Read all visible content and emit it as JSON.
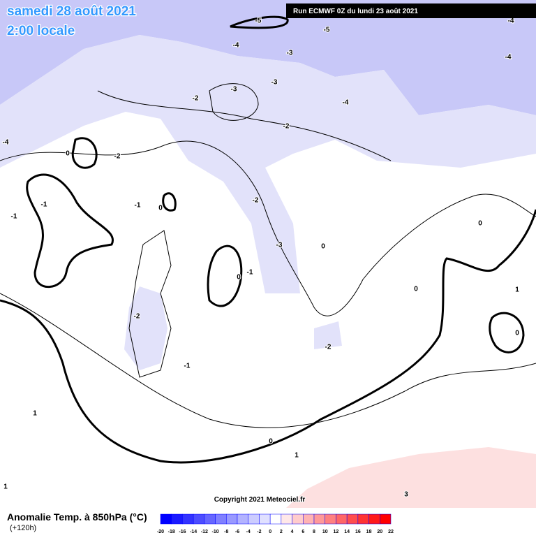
{
  "header": {
    "date": "samedi 28 août 2021",
    "time": "2:00 locale",
    "run": "Run ECMWF 0Z du lundi 23 août 2021"
  },
  "map": {
    "contour_labels": [
      -5,
      -5,
      -4,
      -4,
      -3,
      -4,
      -3,
      -3,
      -2,
      -4,
      -2,
      -4,
      0,
      -2,
      -1,
      -1,
      0,
      -2,
      -1,
      0,
      -3,
      0,
      0,
      -1,
      0,
      1,
      -2,
      0,
      -2,
      -1,
      1,
      0,
      1,
      1,
      3
    ],
    "copyright": "Copyright 2021 Meteociel.fr"
  },
  "legend": {
    "title": "Anomalie Temp. à 850hPa (°C)",
    "lead": "(+120h)",
    "ticks": [
      -20,
      -18,
      -16,
      -14,
      -12,
      -10,
      -8,
      -6,
      -4,
      -2,
      0,
      2,
      4,
      6,
      8,
      10,
      12,
      14,
      16,
      18,
      20,
      22
    ],
    "colors": [
      "#0000ff",
      "#1a1aff",
      "#3333ff",
      "#4d4dff",
      "#6666ff",
      "#8080ff",
      "#9999ff",
      "#b3b3ff",
      "#ccccff",
      "#e0e0ff",
      "#ffffff",
      "#ffe8e8",
      "#ffcccc",
      "#ffb3b3",
      "#ff9999",
      "#ff8080",
      "#ff6666",
      "#ff4d4d",
      "#ff3333",
      "#ff1a1a",
      "#ff0000"
    ]
  }
}
